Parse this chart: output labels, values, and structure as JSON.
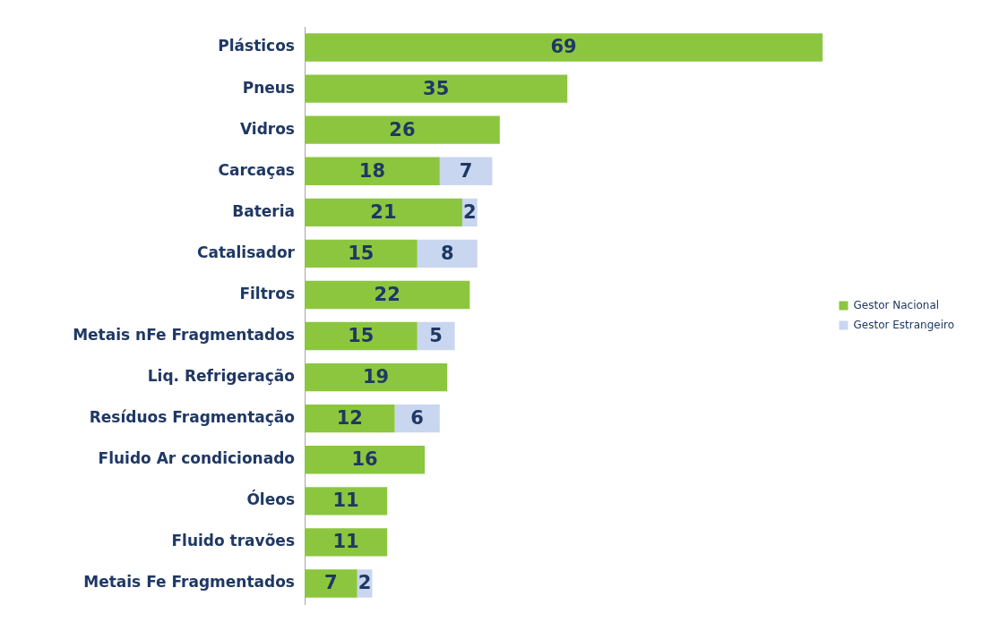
{
  "chart_data": {
    "type": "bar",
    "orientation": "horizontal",
    "stacked": true,
    "categories": [
      "Plásticos",
      "Pneus",
      "Vidros",
      "Carcaças",
      "Bateria",
      "Catalisador",
      "Filtros",
      "Metais nFe Fragmentados",
      "Liq. Refrigeração",
      "Resíduos Fragmentação",
      "Fluido Ar condicionado",
      "Óleos",
      "Fluido travões",
      "Metais Fe Fragmentados"
    ],
    "series": [
      {
        "name": "Gestor Nacional",
        "color": "#8cc63f",
        "values": [
          69,
          35,
          26,
          18,
          21,
          15,
          22,
          15,
          19,
          12,
          16,
          11,
          11,
          7
        ]
      },
      {
        "name": "Gestor Estrangeiro",
        "color": "#c9d6ef",
        "values": [
          null,
          null,
          null,
          7,
          2,
          8,
          null,
          5,
          null,
          6,
          null,
          null,
          null,
          2
        ]
      }
    ],
    "data_labels": true,
    "legend": "right",
    "tick_labels": "y"
  }
}
